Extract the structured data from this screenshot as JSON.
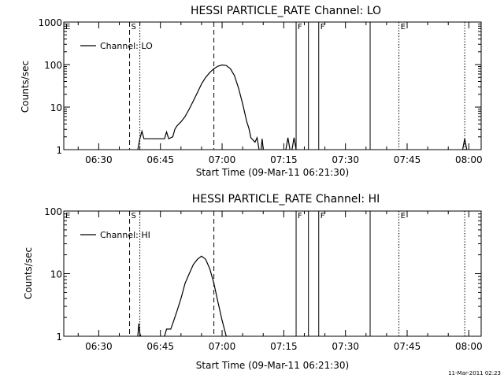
{
  "footer_timestamp": "11-Mar-2011 02:23",
  "chart_data": [
    {
      "type": "line",
      "title": "HESSI PARTICLE_RATE Channel: LO",
      "xlabel": "Start Time (09-Mar-11 06:21:30)",
      "ylabel": "Counts/sec",
      "y_scale": "log",
      "xlim": [
        "06:21:30",
        "08:03:00"
      ],
      "ylim": [
        1,
        1000
      ],
      "x_ticks": [
        "06:30",
        "06:45",
        "07:00",
        "07:15",
        "07:30",
        "07:45",
        "08:00"
      ],
      "y_ticks": [
        "1",
        "10",
        "100",
        "1000"
      ],
      "legend": {
        "placement": "top-left",
        "label": "Channel: LO"
      },
      "markers": [
        {
          "label": "E",
          "time": "06:21:30",
          "style": "dotted"
        },
        {
          "label": "S",
          "time": "06:37:30",
          "style": "dashed"
        },
        {
          "label": "",
          "time": "06:40:00",
          "style": "dotted"
        },
        {
          "label": "",
          "time": "06:58:00",
          "style": "dashed"
        },
        {
          "label": "F",
          "time": "07:18:00",
          "style": "solid"
        },
        {
          "label": "",
          "time": "07:21:00",
          "style": "solid"
        },
        {
          "label": "F",
          "time": "07:23:30",
          "style": "solid"
        },
        {
          "label": "",
          "time": "07:36:00",
          "style": "solid"
        },
        {
          "label": "E",
          "time": "07:43:00",
          "style": "dotted"
        },
        {
          "label": "",
          "time": "07:59:00",
          "style": "dotted"
        }
      ],
      "series": [
        {
          "segments": [
            [
              [
                "06:39:30",
                1
              ],
              [
                "06:40:00",
                1.8
              ],
              [
                "06:40:30",
                2.7
              ],
              [
                "06:41:00",
                1.8
              ],
              [
                "06:42:00",
                1.8
              ],
              [
                "06:45:00",
                1.8
              ],
              [
                "06:46:00",
                1.8
              ],
              [
                "06:46:30",
                2.6
              ],
              [
                "06:47:00",
                1.8
              ],
              [
                "06:48:00",
                2.0
              ],
              [
                "06:48:30",
                3.0
              ],
              [
                "06:49:00",
                3.6
              ],
              [
                "06:50:00",
                4.5
              ],
              [
                "06:51:00",
                6
              ],
              [
                "06:52:00",
                9
              ],
              [
                "06:53:00",
                14
              ],
              [
                "06:54:00",
                22
              ],
              [
                "06:55:00",
                35
              ],
              [
                "06:56:00",
                50
              ],
              [
                "06:57:00",
                65
              ],
              [
                "06:58:00",
                80
              ],
              [
                "06:59:00",
                92
              ],
              [
                "07:00:00",
                98
              ],
              [
                "07:01:00",
                95
              ],
              [
                "07:02:00",
                80
              ],
              [
                "07:03:00",
                55
              ],
              [
                "07:04:00",
                28
              ],
              [
                "07:05:00",
                12
              ],
              [
                "07:06:00",
                4.5
              ],
              [
                "07:06:30",
                3.2
              ],
              [
                "07:07:00",
                1.9
              ],
              [
                "07:08:00",
                1.5
              ],
              [
                "07:08:30",
                1.9
              ],
              [
                "07:09:00",
                1.0
              ]
            ],
            [
              [
                "07:09:30",
                1
              ],
              [
                "07:09:45",
                1.8
              ],
              [
                "07:10:00",
                1
              ]
            ],
            [
              [
                "07:15:30",
                1
              ],
              [
                "07:16:00",
                1.9
              ],
              [
                "07:16:30",
                1
              ]
            ],
            [
              [
                "07:17:00",
                1
              ],
              [
                "07:17:30",
                1.9
              ],
              [
                "07:18:00",
                1
              ]
            ],
            [
              [
                "07:58:30",
                1
              ],
              [
                "07:59:00",
                1.8
              ],
              [
                "07:59:30",
                1
              ]
            ]
          ]
        }
      ]
    },
    {
      "type": "line",
      "title": "HESSI PARTICLE_RATE Channel: HI",
      "xlabel": "Start Time (09-Mar-11 06:21:30)",
      "ylabel": "Counts/sec",
      "y_scale": "log",
      "xlim": [
        "06:21:30",
        "08:03:00"
      ],
      "ylim": [
        1,
        100
      ],
      "x_ticks": [
        "06:30",
        "06:45",
        "07:00",
        "07:15",
        "07:30",
        "07:45",
        "08:00"
      ],
      "y_ticks": [
        "1",
        "10",
        "100"
      ],
      "legend": {
        "placement": "top-left",
        "label": "Channel: HI"
      },
      "markers": [
        {
          "label": "E",
          "time": "06:21:30",
          "style": "dotted"
        },
        {
          "label": "S",
          "time": "06:37:30",
          "style": "dashed"
        },
        {
          "label": "",
          "time": "06:40:00",
          "style": "dotted"
        },
        {
          "label": "",
          "time": "06:58:00",
          "style": "dashed"
        },
        {
          "label": "F",
          "time": "07:18:00",
          "style": "solid"
        },
        {
          "label": "",
          "time": "07:21:00",
          "style": "solid"
        },
        {
          "label": "F",
          "time": "07:23:30",
          "style": "solid"
        },
        {
          "label": "",
          "time": "07:36:00",
          "style": "solid"
        },
        {
          "label": "E",
          "time": "07:43:00",
          "style": "dotted"
        },
        {
          "label": "",
          "time": "07:59:00",
          "style": "dotted"
        }
      ],
      "series": [
        {
          "segments": [
            [
              [
                "06:39:30",
                1
              ],
              [
                "06:39:45",
                1.6
              ],
              [
                "06:40:00",
                1.1
              ],
              [
                "06:40:15",
                1
              ]
            ],
            [
              [
                "06:46:00",
                1
              ],
              [
                "06:46:30",
                1.3
              ],
              [
                "06:47:30",
                1.3
              ],
              [
                "06:48:00",
                1.6
              ],
              [
                "06:49:00",
                2.5
              ],
              [
                "06:50:00",
                4
              ],
              [
                "06:51:00",
                7
              ],
              [
                "06:52:00",
                10
              ],
              [
                "06:53:00",
                14
              ],
              [
                "06:54:00",
                17
              ],
              [
                "06:55:00",
                19
              ],
              [
                "06:56:00",
                17
              ],
              [
                "06:57:00",
                12
              ],
              [
                "06:58:00",
                7
              ],
              [
                "06:59:00",
                3.5
              ],
              [
                "07:00:00",
                1.8
              ],
              [
                "07:01:00",
                1.0
              ]
            ]
          ]
        }
      ]
    }
  ]
}
